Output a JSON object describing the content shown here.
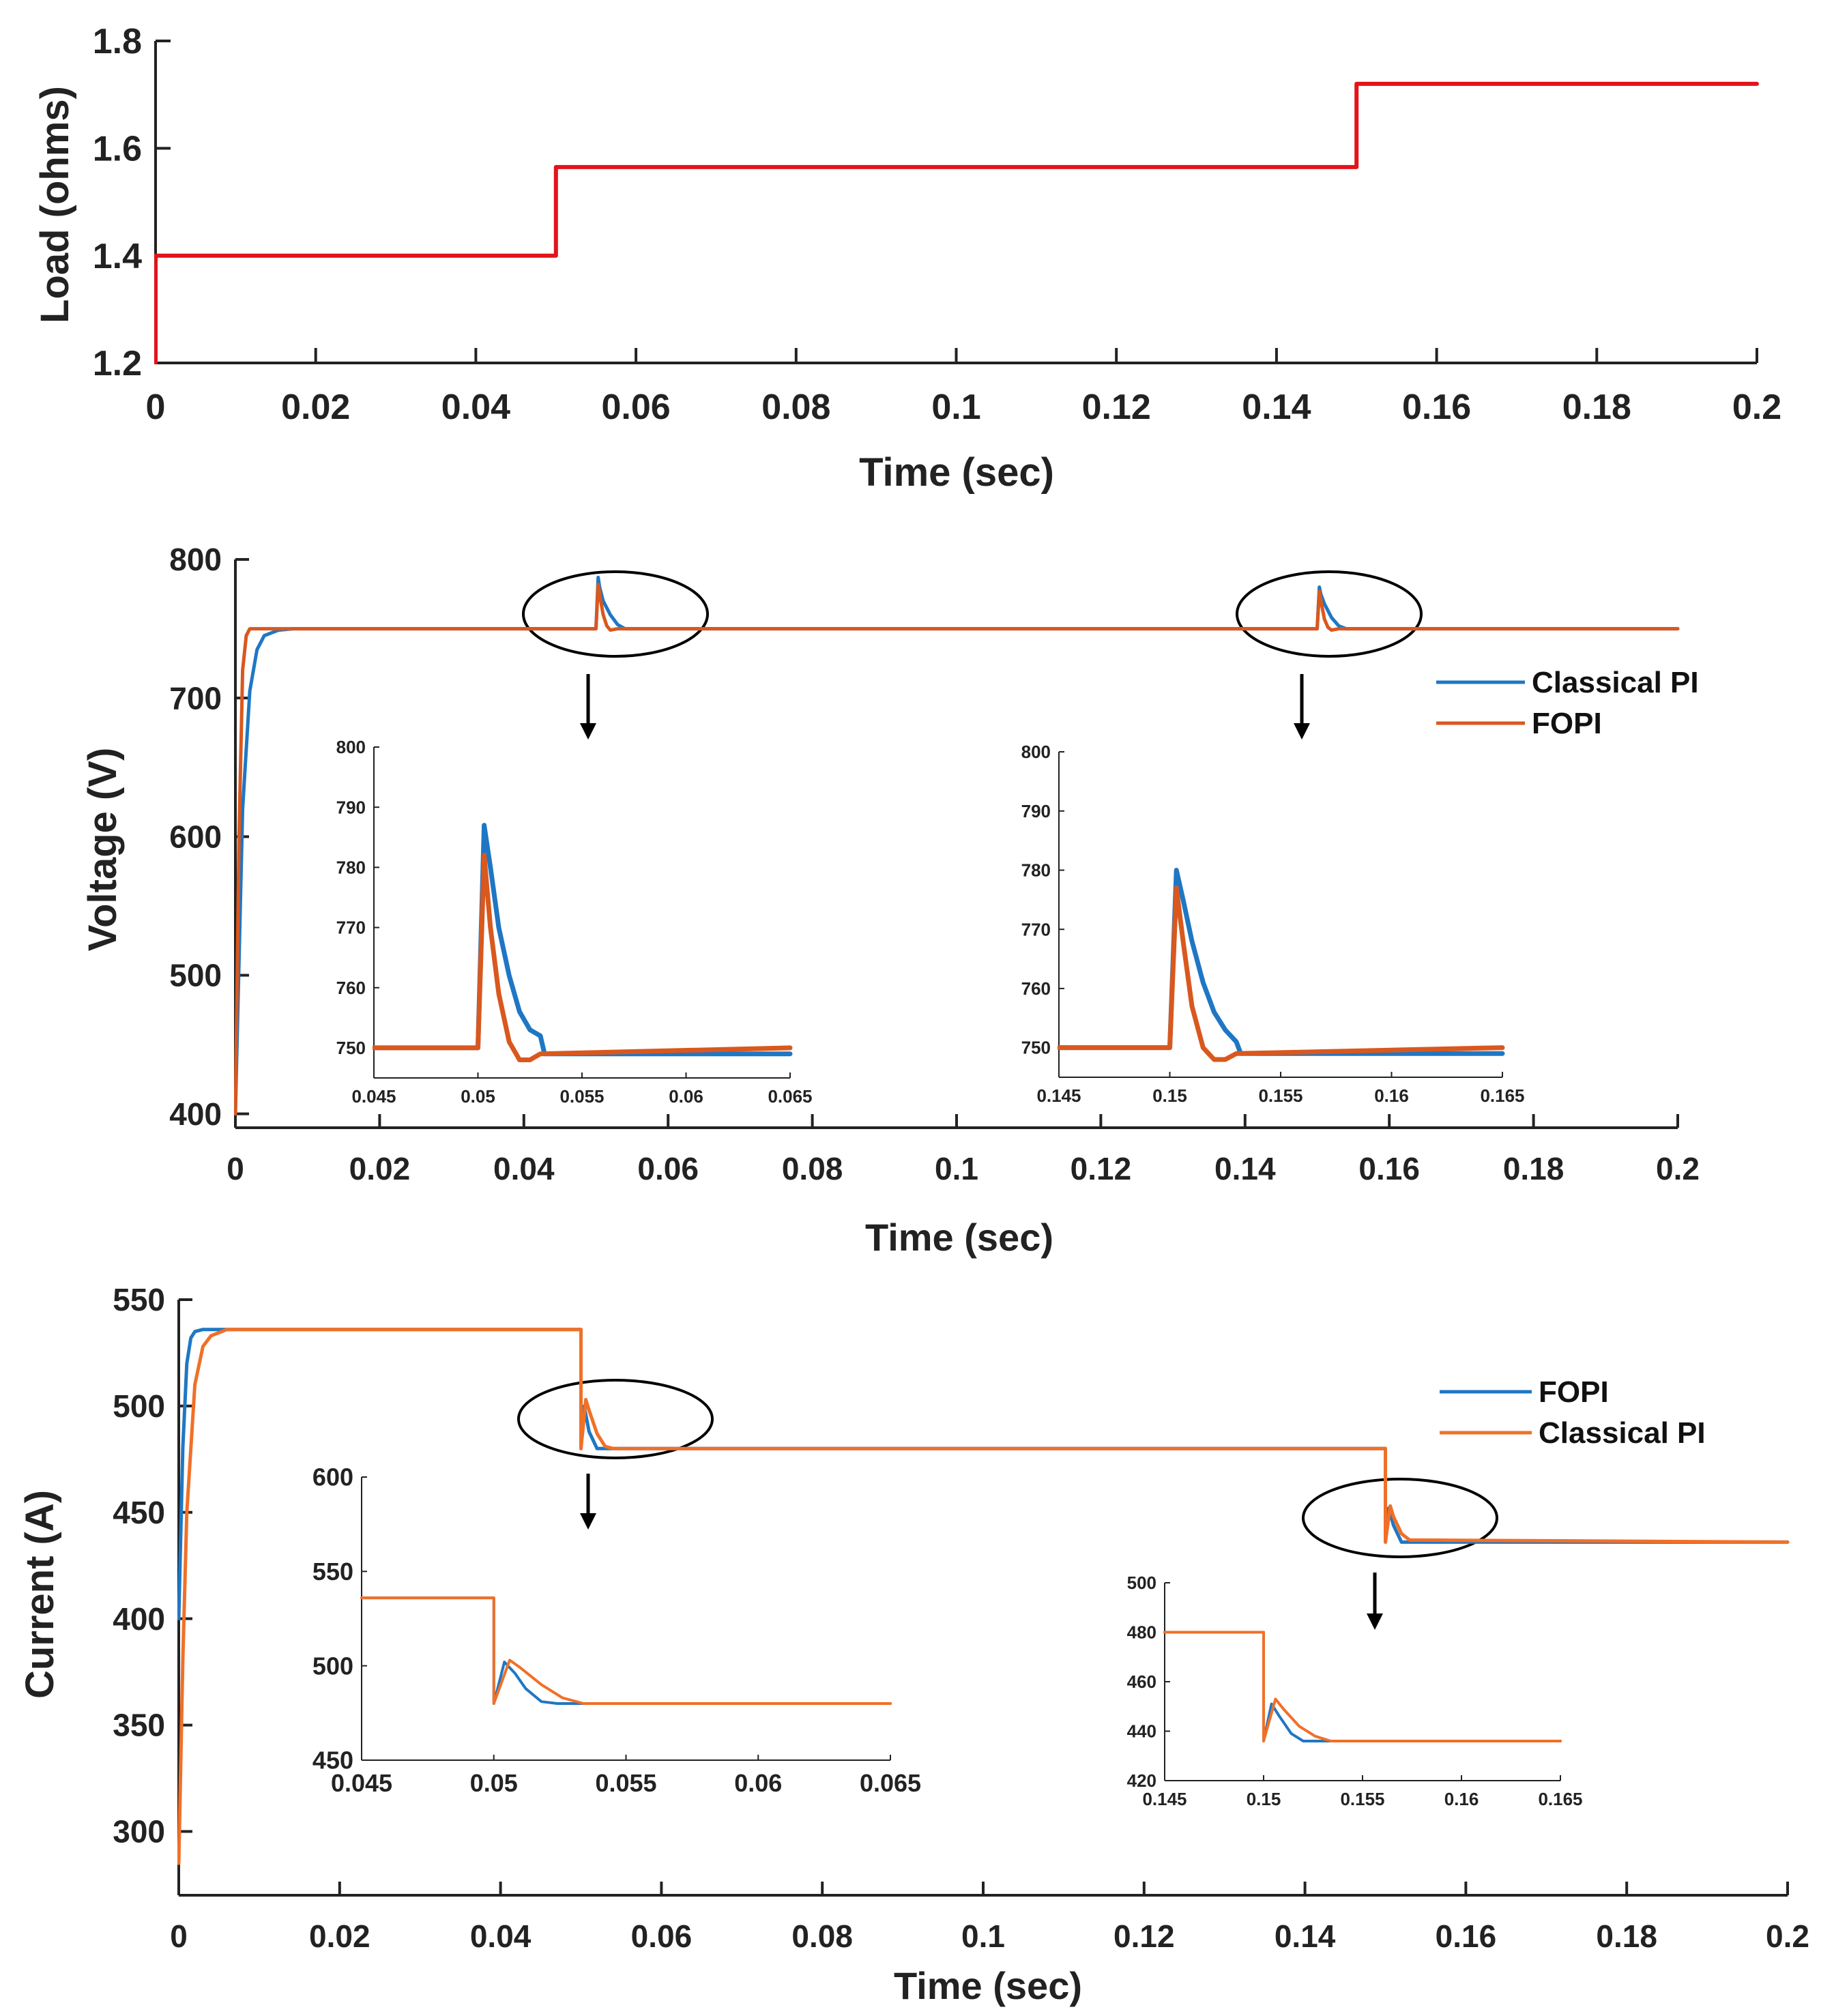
{
  "colors": {
    "red": "#e3131b",
    "blue": "#1f77c4",
    "orange": "#f07028",
    "dark_orange": "#d9581e",
    "axis": "#222222"
  },
  "chart_data": [
    {
      "id": "load",
      "type": "line",
      "title": "",
      "xlabel": "Time (sec)",
      "ylabel": "Load (ohms)",
      "xlim": [
        0,
        0.2
      ],
      "ylim": [
        1.2,
        1.8
      ],
      "xticks": [
        0,
        0.02,
        0.04,
        0.06,
        0.08,
        0.1,
        0.12,
        0.14,
        0.16,
        0.18,
        0.2
      ],
      "xtick_labels": [
        "0",
        "0.02",
        "0.04",
        "0.06",
        "0.08",
        "0.1",
        "0.12",
        "0.14",
        "0.16",
        "0.18",
        "0.2"
      ],
      "yticks": [
        1.2,
        1.4,
        1.6,
        1.8
      ],
      "ytick_labels": [
        "1.2",
        "1.4",
        "1.6",
        "1.8"
      ],
      "series": [
        {
          "name": "Load",
          "color": "#e3131b",
          "x": [
            0,
            0,
            0.05,
            0.05,
            0.15,
            0.15,
            0.2
          ],
          "y": [
            1.2,
            1.4,
            1.4,
            1.565,
            1.565,
            1.72,
            1.72
          ]
        }
      ]
    },
    {
      "id": "voltage",
      "type": "line",
      "xlabel": "Time (sec)",
      "ylabel": "Voltage (V)",
      "xlim": [
        0,
        0.2
      ],
      "ylim": [
        390,
        800
      ],
      "xticks": [
        0,
        0.02,
        0.04,
        0.06,
        0.08,
        0.1,
        0.12,
        0.14,
        0.16,
        0.18,
        0.2
      ],
      "xtick_labels": [
        "0",
        "0.02",
        "0.04",
        "0.06",
        "0.08",
        "0.1",
        "0.12",
        "0.14",
        "0.16",
        "0.18",
        "0.2"
      ],
      "yticks": [
        400,
        500,
        600,
        700,
        800
      ],
      "ytick_labels": [
        "400",
        "500",
        "600",
        "700",
        "800"
      ],
      "legend": [
        "Classical PI",
        "FOPI"
      ],
      "series": [
        {
          "name": "Classical PI",
          "color": "#1f77c4",
          "x": [
            0,
            0.001,
            0.002,
            0.003,
            0.004,
            0.006,
            0.008,
            0.01,
            0.05,
            0.0503,
            0.0505,
            0.051,
            0.052,
            0.053,
            0.054,
            0.15,
            0.1503,
            0.1505,
            0.151,
            0.152,
            0.153,
            0.154,
            0.2
          ],
          "y": [
            400,
            620,
            705,
            735,
            745,
            749,
            750,
            750,
            750,
            787,
            780,
            770,
            760,
            753,
            750,
            750,
            780,
            775,
            768,
            758,
            752,
            750,
            750
          ]
        },
        {
          "name": "FOPI",
          "color": "#d9581e",
          "x": [
            0,
            0.0005,
            0.001,
            0.0015,
            0.002,
            0.003,
            0.01,
            0.05,
            0.0503,
            0.0506,
            0.051,
            0.0515,
            0.052,
            0.053,
            0.15,
            0.1503,
            0.1506,
            0.151,
            0.1515,
            0.152,
            0.153,
            0.2
          ],
          "y": [
            400,
            600,
            720,
            745,
            750,
            750,
            750,
            750,
            782,
            772,
            760,
            752,
            749,
            750,
            750,
            777,
            768,
            757,
            751,
            749,
            750,
            750
          ]
        }
      ],
      "insets": [
        {
          "xlim": [
            0.045,
            0.065
          ],
          "ylim": [
            745,
            800
          ],
          "xticks": [
            0.045,
            0.05,
            0.055,
            0.06,
            0.065
          ],
          "xtick_labels": [
            "0.045",
            "0.05",
            "0.055",
            "0.06",
            "0.065"
          ],
          "yticks": [
            750,
            760,
            770,
            780,
            790,
            800
          ],
          "ytick_labels": [
            "750",
            "760",
            "770",
            "780",
            "790",
            "800"
          ],
          "series": [
            {
              "name": "Classical PI",
              "x": [
                0.045,
                0.05,
                0.0503,
                0.0506,
                0.051,
                0.0515,
                0.052,
                0.0525,
                0.053,
                0.0532,
                0.065
              ],
              "y": [
                750,
                750,
                787,
                780,
                770,
                762,
                756,
                753,
                752,
                749,
                749
              ]
            },
            {
              "name": "FOPI",
              "x": [
                0.045,
                0.05,
                0.0503,
                0.0506,
                0.051,
                0.0515,
                0.052,
                0.0525,
                0.053,
                0.065
              ],
              "y": [
                750,
                750,
                782,
                770,
                759,
                751,
                748,
                748,
                749,
                750
              ]
            }
          ]
        },
        {
          "xlim": [
            0.145,
            0.165
          ],
          "ylim": [
            745,
            800
          ],
          "xticks": [
            0.145,
            0.15,
            0.155,
            0.16,
            0.165
          ],
          "xtick_labels": [
            "0.145",
            "0.15",
            "0.155",
            "0.16",
            "0.165"
          ],
          "yticks": [
            750,
            760,
            770,
            780,
            790,
            800
          ],
          "ytick_labels": [
            "750",
            "760",
            "770",
            "780",
            "790",
            "800"
          ],
          "series": [
            {
              "name": "Classical PI",
              "x": [
                0.145,
                0.15,
                0.1503,
                0.1506,
                0.151,
                0.1515,
                0.152,
                0.1525,
                0.153,
                0.1532,
                0.165
              ],
              "y": [
                750,
                750,
                780,
                775,
                768,
                761,
                756,
                753,
                751,
                749,
                749
              ]
            },
            {
              "name": "FOPI",
              "x": [
                0.145,
                0.15,
                0.1503,
                0.1506,
                0.151,
                0.1515,
                0.152,
                0.1525,
                0.153,
                0.165
              ],
              "y": [
                750,
                750,
                777,
                768,
                757,
                750,
                748,
                748,
                749,
                750
              ]
            }
          ]
        }
      ]
    },
    {
      "id": "current",
      "type": "line",
      "xlabel": "Time (sec)",
      "ylabel": "Current (A)",
      "xlim": [
        0,
        0.2
      ],
      "ylim": [
        270,
        550
      ],
      "xticks": [
        0,
        0.02,
        0.04,
        0.06,
        0.08,
        0.1,
        0.12,
        0.14,
        0.16,
        0.18,
        0.2
      ],
      "xtick_labels": [
        "0",
        "0.02",
        "0.04",
        "0.06",
        "0.08",
        "0.1",
        "0.12",
        "0.14",
        "0.16",
        "0.18",
        "0.2"
      ],
      "yticks": [
        300,
        350,
        400,
        450,
        500,
        550
      ],
      "ytick_labels": [
        "300",
        "350",
        "400",
        "450",
        "500",
        "550"
      ],
      "legend": [
        "FOPI",
        "Classical PI"
      ],
      "series": [
        {
          "name": "FOPI",
          "color": "#1f77c4",
          "x": [
            0,
            0.0005,
            0.001,
            0.0015,
            0.002,
            0.003,
            0.01,
            0.05,
            0.05,
            0.0504,
            0.051,
            0.052,
            0.053,
            0.15,
            0.15,
            0.1504,
            0.151,
            0.152,
            0.153,
            0.2
          ],
          "y": [
            400,
            480,
            520,
            532,
            535,
            536,
            536,
            536,
            480,
            500,
            488,
            480,
            480,
            480,
            436,
            452,
            444,
            436,
            436,
            436
          ]
        },
        {
          "name": "Classical PI",
          "color": "#f07028",
          "x": [
            0,
            0.0005,
            0.001,
            0.002,
            0.003,
            0.004,
            0.006,
            0.01,
            0.05,
            0.05,
            0.0506,
            0.051,
            0.052,
            0.053,
            0.054,
            0.15,
            0.15,
            0.1506,
            0.151,
            0.152,
            0.153,
            0.2
          ],
          "y": [
            285,
            380,
            450,
            510,
            528,
            533,
            536,
            536,
            536,
            480,
            503,
            498,
            487,
            481,
            480,
            480,
            436,
            453,
            448,
            440,
            437,
            436
          ]
        }
      ],
      "insets": [
        {
          "xlim": [
            0.045,
            0.065
          ],
          "ylim": [
            450,
            600
          ],
          "xticks": [
            0.045,
            0.05,
            0.055,
            0.06,
            0.065
          ],
          "xtick_labels": [
            "0.045",
            "0.05",
            "0.055",
            "0.06",
            "0.065"
          ],
          "yticks": [
            450,
            500,
            550,
            600
          ],
          "ytick_labels": [
            "450",
            "500",
            "550",
            "600"
          ],
          "series": [
            {
              "name": "FOPI",
              "x": [
                0.045,
                0.05,
                0.05,
                0.0504,
                0.0508,
                0.0512,
                0.0518,
                0.0524,
                0.065
              ],
              "y": [
                536,
                536,
                480,
                502,
                496,
                488,
                481,
                480,
                480
              ]
            },
            {
              "name": "Classical PI",
              "x": [
                0.045,
                0.05,
                0.05,
                0.0506,
                0.051,
                0.0518,
                0.0526,
                0.0534,
                0.065
              ],
              "y": [
                536,
                536,
                480,
                503,
                499,
                490,
                483,
                480,
                480
              ]
            }
          ]
        },
        {
          "xlim": [
            0.145,
            0.165
          ],
          "ylim": [
            420,
            500
          ],
          "xticks": [
            0.145,
            0.15,
            0.155,
            0.16,
            0.165
          ],
          "xtick_labels": [
            "0.145",
            "0.15",
            "0.155",
            "0.16",
            "0.165"
          ],
          "yticks": [
            420,
            440,
            460,
            480,
            500
          ],
          "ytick_labels": [
            "420",
            "440",
            "460",
            "480",
            "500"
          ],
          "series": [
            {
              "name": "FOPI",
              "x": [
                0.145,
                0.15,
                0.15,
                0.1504,
                0.1508,
                0.1514,
                0.152,
                0.165
              ],
              "y": [
                480,
                480,
                436,
                451,
                446,
                439,
                436,
                436
              ]
            },
            {
              "name": "Classical PI",
              "x": [
                0.145,
                0.15,
                0.15,
                0.1506,
                0.151,
                0.1518,
                0.1526,
                0.1534,
                0.165
              ],
              "y": [
                480,
                480,
                436,
                453,
                449,
                442,
                438,
                436,
                436
              ]
            }
          ]
        }
      ]
    }
  ]
}
